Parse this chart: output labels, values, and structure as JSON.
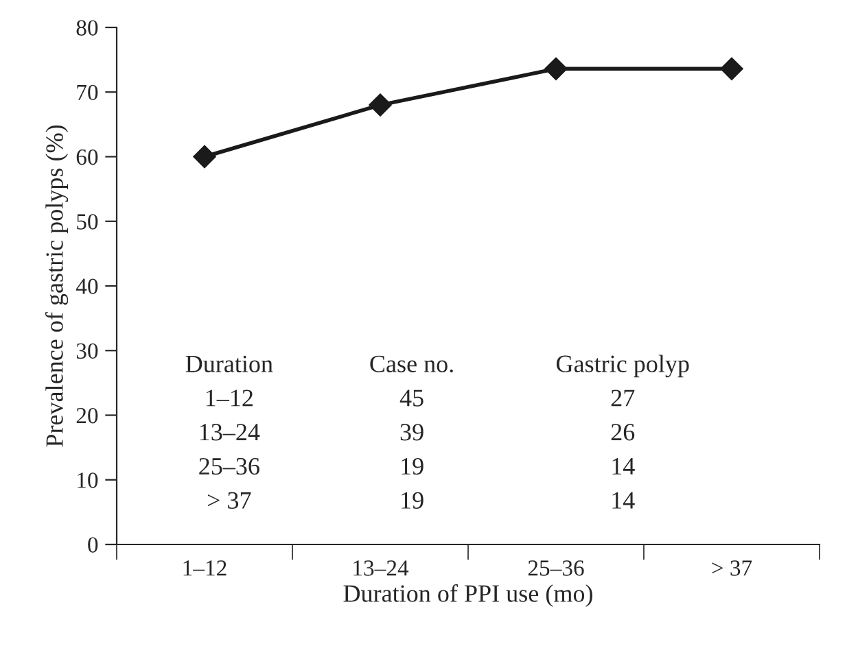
{
  "chart_data": {
    "type": "line",
    "xlabel": "Duration of PPI use (mo)",
    "ylabel": "Prevalence of gastric polyps (%)",
    "categories": [
      "1–12",
      "13–24",
      "25–36",
      "> 37"
    ],
    "series": [
      {
        "color": "#1a1a1a",
        "values": [
          60,
          68,
          73.6,
          73.6
        ]
      }
    ],
    "ylim": [
      0,
      80
    ],
    "yticks": [
      0,
      10,
      20,
      30,
      40,
      50,
      60,
      70,
      80
    ],
    "marker": "diamond",
    "line_style": "solid",
    "grid": false,
    "legend": false,
    "annotations": [
      "Duration",
      "Case no.",
      "Gastric polyp",
      "1–12",
      "45",
      "27",
      "13–24",
      "39",
      "26",
      "25–36",
      "19",
      "14",
      "> 37",
      "19",
      "14"
    ]
  }
}
